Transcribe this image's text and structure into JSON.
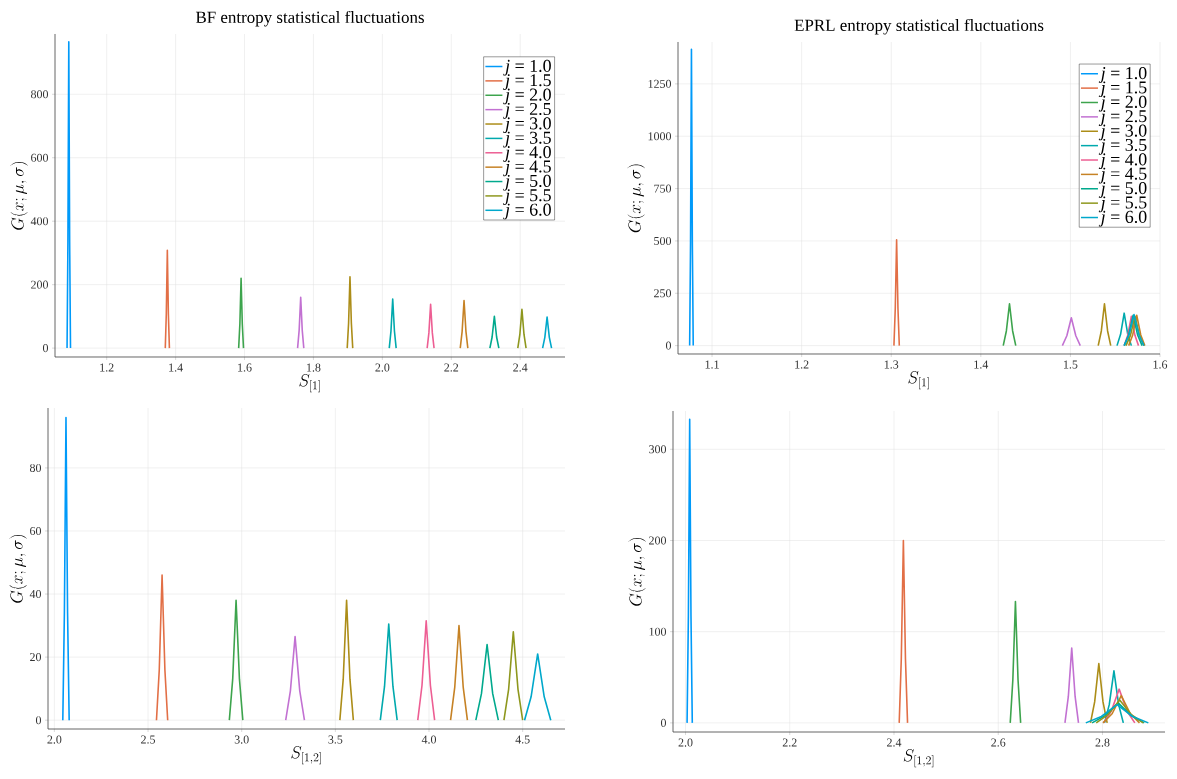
{
  "chart_data": [
    {
      "type": "line",
      "title": "BF entropy statistical fluctuations",
      "xlabel": "S_{[1]}",
      "ylabel": "G(x;\\mu,\\sigma)",
      "xlim": [
        1.05,
        2.53
      ],
      "ylim": [
        -28,
        990
      ],
      "xticks": [
        1.2,
        1.4,
        1.6,
        1.8,
        {
          "value": 2,
          "label": "2.0"
        },
        2.2,
        2.4
      ],
      "yticks": [
        0,
        200,
        400,
        600,
        800
      ],
      "grid": true,
      "legend": "top right",
      "series": [
        {
          "name": "*j* = 1.0",
          "color": "#009af9",
          "x": [
            1.085,
            1.0875,
            1.09,
            1.0925,
            1.095
          ],
          "values": [
            0,
            338,
            965,
            338,
            0
          ]
        },
        {
          "name": "*j* = 1.5",
          "color": "#e26f46",
          "x": [
            1.37,
            1.373,
            1.376,
            1.379,
            1.382
          ],
          "values": [
            0,
            108,
            308,
            108,
            0
          ]
        },
        {
          "name": "*j* = 2.0",
          "color": "#3da44d",
          "x": [
            1.583,
            1.5865,
            1.59,
            1.5935,
            1.597
          ],
          "values": [
            0,
            77,
            220,
            77,
            0
          ]
        },
        {
          "name": "*j* = 2.5",
          "color": "#c271d2",
          "x": [
            1.754,
            1.7585,
            1.763,
            1.7675,
            1.772
          ],
          "values": [
            0,
            56,
            160,
            56,
            0
          ]
        },
        {
          "name": "*j* = 3.0",
          "color": "#ac8d18",
          "x": [
            1.898,
            1.902,
            1.906,
            1.91,
            1.914
          ],
          "values": [
            0,
            79,
            225,
            79,
            0
          ]
        },
        {
          "name": "*j* = 3.5",
          "color": "#00a9ad",
          "x": [
            2.02,
            2.025,
            2.03,
            2.035,
            2.04
          ],
          "values": [
            0,
            54,
            155,
            54,
            0
          ]
        },
        {
          "name": "*j* = 4.0",
          "color": "#ed5e93",
          "x": [
            2.13,
            2.135,
            2.14,
            2.145,
            2.15
          ],
          "values": [
            0,
            48,
            138,
            48,
            0
          ]
        },
        {
          "name": "*j* = 4.5",
          "color": "#c68225",
          "x": [
            2.226,
            2.2315,
            2.237,
            2.2425,
            2.248
          ],
          "values": [
            0,
            53,
            150,
            53,
            0
          ]
        },
        {
          "name": "*j* = 5.0",
          "color": "#00a98d",
          "x": [
            2.312,
            2.3185,
            2.325,
            2.3315,
            2.338
          ],
          "values": [
            0,
            35,
            100,
            35,
            0
          ]
        },
        {
          "name": "*j* = 5.5",
          "color": "#8e971d",
          "x": [
            2.393,
            2.399,
            2.405,
            2.411,
            2.417
          ],
          "values": [
            0,
            43,
            122,
            43,
            0
          ]
        },
        {
          "name": "*j* = 6.0",
          "color": "#00a8cb",
          "x": [
            2.465,
            2.4715,
            2.478,
            2.4845,
            2.491
          ],
          "values": [
            0,
            34,
            98,
            34,
            0
          ]
        }
      ]
    },
    {
      "type": "line",
      "title": "EPRL entropy statistical fluctuations",
      "xlabel": "S_{[1]}",
      "ylabel": "G(x;\\mu,\\sigma)",
      "xlim": [
        1.062,
        1.6
      ],
      "ylim": [
        -40,
        1450
      ],
      "xticks": [
        1.1,
        1.2,
        1.3,
        1.4,
        1.5,
        1.6
      ],
      "yticks": [
        0,
        250,
        500,
        750,
        1000,
        1250
      ],
      "grid": true,
      "legend": "top right",
      "series": [
        {
          "name": "*j* = 1.0",
          "color": "#009af9",
          "x": [
            1.075,
            1.076,
            1.077,
            1.078,
            1.079
          ],
          "values": [
            0,
            495,
            1415,
            495,
            0
          ]
        },
        {
          "name": "*j* = 1.5",
          "color": "#e26f46",
          "x": [
            1.303,
            1.3045,
            1.306,
            1.3075,
            1.309
          ],
          "values": [
            0,
            177,
            505,
            177,
            0
          ]
        },
        {
          "name": "*j* = 2.0",
          "color": "#3da44d",
          "x": [
            1.425,
            1.4285,
            1.432,
            1.4355,
            1.439
          ],
          "values": [
            0,
            70,
            200,
            70,
            0
          ]
        },
        {
          "name": "*j* = 2.5",
          "color": "#c271d2",
          "x": [
            1.491,
            1.496,
            1.501,
            1.506,
            1.511
          ],
          "values": [
            0,
            47,
            133,
            47,
            0
          ]
        },
        {
          "name": "*j* = 3.0",
          "color": "#ac8d18",
          "x": [
            1.531,
            1.5345,
            1.538,
            1.5415,
            1.545
          ],
          "values": [
            0,
            70,
            200,
            70,
            0
          ]
        },
        {
          "name": "*j* = 3.5",
          "color": "#00a9ad",
          "x": [
            1.552,
            1.556,
            1.56,
            1.564,
            1.568
          ],
          "values": [
            0,
            54,
            155,
            54,
            0
          ]
        },
        {
          "name": "*j* = 4.0",
          "color": "#ed5e93",
          "x": [
            1.56,
            1.564,
            1.568,
            1.572,
            1.576
          ],
          "values": [
            0,
            49,
            140,
            49,
            0
          ]
        },
        {
          "name": "*j* = 4.5",
          "color": "#c68225",
          "x": [
            1.565,
            1.5695,
            1.574,
            1.5785,
            1.583
          ],
          "values": [
            0,
            51,
            145,
            51,
            0
          ]
        },
        {
          "name": "*j* = 5.0",
          "color": "#00a98d",
          "x": [
            1.56,
            1.565,
            1.57,
            1.575,
            1.58
          ],
          "values": [
            0,
            51,
            145,
            51,
            0
          ]
        },
        {
          "name": "*j* = 5.5",
          "color": "#8e971d",
          "x": [
            1.562,
            1.567,
            1.572,
            1.577,
            1.582
          ],
          "values": [
            0,
            49,
            140,
            49,
            0
          ]
        },
        {
          "name": "*j* = 6.0",
          "color": "#00a8cb",
          "x": [
            1.56,
            1.5655,
            1.571,
            1.5765,
            1.582
          ],
          "values": [
            0,
            52,
            148,
            52,
            0
          ]
        }
      ]
    },
    {
      "type": "line",
      "xlabel": "S_{[1,2]}",
      "ylabel": "G(x;\\mu,\\sigma)",
      "xlim": [
        1.966,
        4.726
      ],
      "ylim": [
        -2.8,
        99
      ],
      "xticks": [
        {
          "value": 2,
          "label": "2.0"
        },
        2.5,
        {
          "value": 3,
          "label": "3.0"
        },
        3.5,
        {
          "value": 4,
          "label": "4.0"
        },
        4.5
      ],
      "yticks": [
        0,
        20,
        40,
        60,
        80
      ],
      "grid": true,
      "series": [
        {
          "color": "#009af9",
          "x": [
            2.045,
            2.0535,
            2.062,
            2.0705,
            2.079
          ],
          "values": [
            0,
            34,
            96,
            34,
            0
          ]
        },
        {
          "color": "#e26f46",
          "x": [
            2.545,
            2.56,
            2.575,
            2.59,
            2.605
          ],
          "values": [
            0,
            16,
            46,
            16,
            0
          ]
        },
        {
          "color": "#3da44d",
          "x": [
            2.934,
            2.952,
            2.97,
            2.988,
            3.006
          ],
          "values": [
            0,
            13,
            38,
            13,
            0
          ]
        },
        {
          "color": "#c271d2",
          "x": [
            3.235,
            3.26,
            3.285,
            3.31,
            3.335
          ],
          "values": [
            0,
            9.3,
            26.5,
            9.3,
            0
          ]
        },
        {
          "color": "#ac8d18",
          "x": [
            3.524,
            3.542,
            3.56,
            3.578,
            3.596
          ],
          "values": [
            0,
            13,
            38,
            13,
            0
          ]
        },
        {
          "color": "#00a9ad",
          "x": [
            3.74,
            3.7625,
            3.785,
            3.8075,
            3.83
          ],
          "values": [
            0,
            10.7,
            30.5,
            10.7,
            0
          ]
        },
        {
          "color": "#ed5e93",
          "x": [
            3.94,
            3.9625,
            3.985,
            4.0075,
            4.03
          ],
          "values": [
            0,
            11,
            31.5,
            11,
            0
          ]
        },
        {
          "color": "#c68225",
          "x": [
            4.115,
            4.1375,
            4.16,
            4.1825,
            4.205
          ],
          "values": [
            0,
            10.5,
            30,
            10.5,
            0
          ]
        },
        {
          "color": "#00a98d",
          "x": [
            4.25,
            4.28,
            4.31,
            4.34,
            4.37
          ],
          "values": [
            0,
            8.4,
            24,
            8.4,
            0
          ]
        },
        {
          "color": "#8e971d",
          "x": [
            4.4,
            4.425,
            4.45,
            4.475,
            4.5
          ],
          "values": [
            0,
            9.8,
            28,
            9.8,
            0
          ]
        },
        {
          "color": "#00a8cb",
          "x": [
            4.51,
            4.545,
            4.58,
            4.615,
            4.65
          ],
          "values": [
            0,
            7.4,
            21,
            7.4,
            0
          ]
        }
      ]
    },
    {
      "type": "line",
      "xlabel": "S_{[1,2]}",
      "ylabel": "G(x;\\mu,\\sigma)",
      "xlim": [
        1.976,
        2.92
      ],
      "ylim": [
        -10,
        342
      ],
      "xticks": [
        {
          "value": 2,
          "label": "2.0"
        },
        2.2,
        2.4,
        2.6,
        2.8
      ],
      "yticks": [
        0,
        100,
        200,
        300
      ],
      "grid": true,
      "series": [
        {
          "color": "#009af9",
          "x": [
            2.003,
            2.0055,
            2.008,
            2.0105,
            2.013
          ],
          "values": [
            0,
            117,
            333,
            117,
            0
          ]
        },
        {
          "color": "#e26f46",
          "x": [
            2.41,
            2.414,
            2.418,
            2.422,
            2.426
          ],
          "values": [
            0,
            70,
            200,
            70,
            0
          ]
        },
        {
          "color": "#3da44d",
          "x": [
            2.623,
            2.628,
            2.633,
            2.638,
            2.643
          ],
          "values": [
            0,
            47,
            133,
            47,
            0
          ]
        },
        {
          "color": "#c271d2",
          "x": [
            2.728,
            2.7345,
            2.741,
            2.7475,
            2.754
          ],
          "values": [
            0,
            29,
            82,
            29,
            0
          ]
        },
        {
          "color": "#ac8d18",
          "x": [
            2.777,
            2.785,
            2.793,
            2.801,
            2.809
          ],
          "values": [
            0,
            23,
            65,
            23,
            0
          ]
        },
        {
          "color": "#00a9ad",
          "x": [
            2.804,
            2.813,
            2.822,
            2.831,
            2.84
          ],
          "values": [
            0,
            20,
            57,
            20,
            0
          ]
        },
        {
          "color": "#ed5e93",
          "x": [
            2.802,
            2.817,
            2.832,
            2.847,
            2.862
          ],
          "values": [
            0,
            13,
            37,
            13,
            0
          ]
        },
        {
          "color": "#c68225",
          "x": [
            2.801,
            2.8185,
            2.836,
            2.8535,
            2.871
          ],
          "values": [
            0,
            10,
            30,
            10,
            0
          ]
        },
        {
          "color": "#00a98d",
          "x": [
            2.78,
            2.805,
            2.83,
            2.855,
            2.88
          ],
          "values": [
            0,
            8,
            22,
            8,
            0
          ]
        },
        {
          "color": "#8e971d",
          "x": [
            2.788,
            2.8105,
            2.833,
            2.8555,
            2.878
          ],
          "values": [
            0,
            9,
            25,
            9,
            0
          ]
        },
        {
          "color": "#00a8cb",
          "x": [
            2.768,
            2.798,
            2.828,
            2.858,
            2.888
          ],
          "values": [
            0,
            7,
            20,
            7,
            0
          ]
        }
      ]
    }
  ]
}
